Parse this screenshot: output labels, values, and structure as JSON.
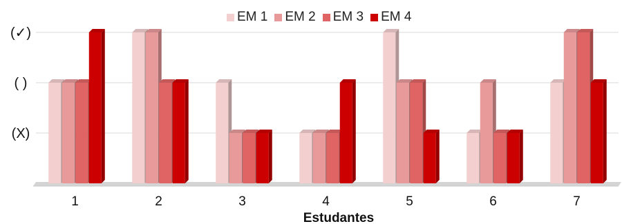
{
  "chart_data": {
    "type": "bar",
    "style": "3d-bar",
    "xlabel": "Estudantes",
    "ylabel": "",
    "categories": [
      "1",
      "2",
      "3",
      "4",
      "5",
      "6",
      "7"
    ],
    "y_levels": [
      {
        "value": 1,
        "label": "(X)"
      },
      {
        "value": 2,
        "label": "(   )"
      },
      {
        "value": 3,
        "label": "(✓)"
      }
    ],
    "ylim": [
      0,
      3
    ],
    "grid": true,
    "legend_position": "top",
    "series": [
      {
        "name": "EM 1",
        "color": "#f3cfcf",
        "values": [
          2,
          3,
          2,
          1,
          3,
          1,
          2
        ]
      },
      {
        "name": "EM 2",
        "color": "#e89a9a",
        "values": [
          2,
          3,
          1,
          1,
          2,
          2,
          3
        ]
      },
      {
        "name": "EM 3",
        "color": "#e06464",
        "values": [
          2,
          2,
          1,
          1,
          2,
          1,
          3
        ]
      },
      {
        "name": "EM 4",
        "color": "#cc0000",
        "values": [
          3,
          2,
          1,
          2,
          1,
          1,
          2
        ]
      }
    ]
  }
}
